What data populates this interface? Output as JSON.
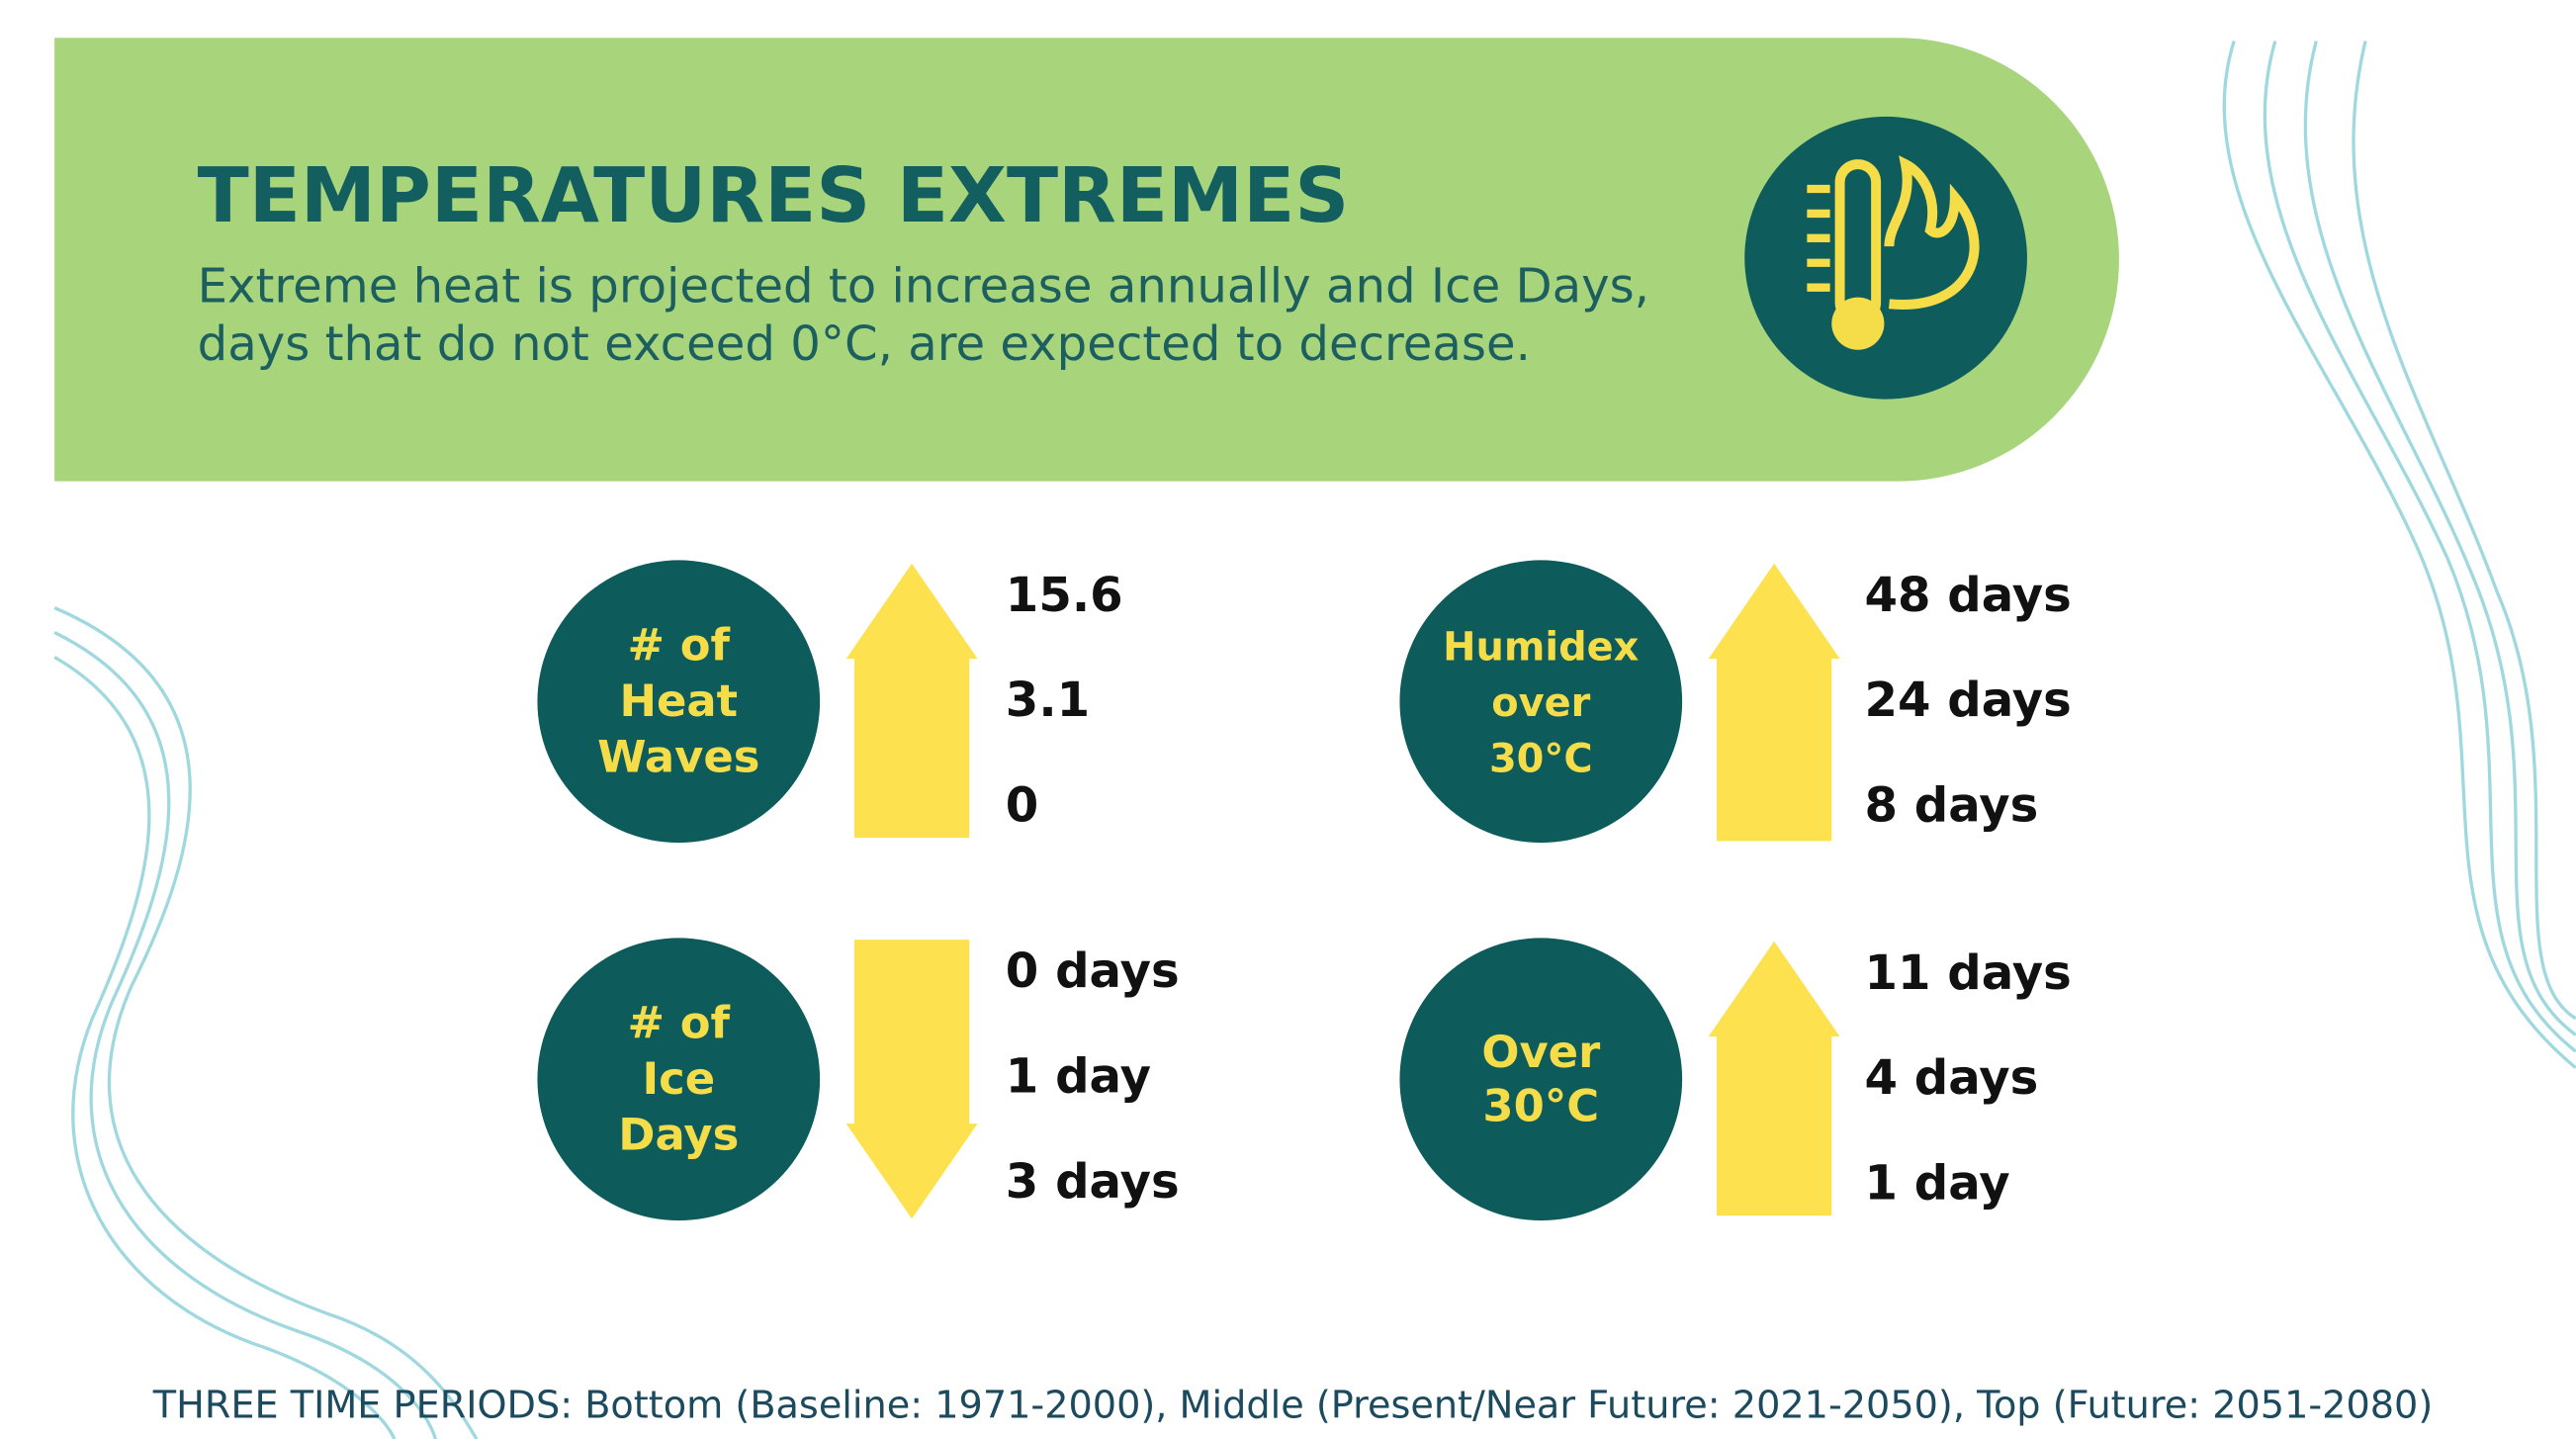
{
  "header": {
    "title": "TEMPERATURES EXTREMES",
    "subtitle": [
      "Extreme heat is projected to increase annually and Ice Days,",
      "days that do not exceed 0°C, are expected to decrease."
    ]
  },
  "panels": [
    {
      "label": [
        "# of",
        "Heat",
        "Waves"
      ],
      "values": [
        "15.6",
        "3.1",
        "0"
      ]
    },
    {
      "label": [
        "Humidex",
        "over",
        "30°C"
      ],
      "values": [
        "48 days",
        "24 days",
        "8 days"
      ]
    },
    {
      "label": [
        "# of",
        "Ice",
        "Days"
      ],
      "values": [
        "0 days",
        "1 day",
        "3 days"
      ]
    },
    {
      "label": [
        "Over",
        "30°C"
      ],
      "values": [
        "11 days",
        "4 days",
        "1 day"
      ]
    }
  ],
  "footer": "THREE TIME PERIODS: Bottom (Baseline: 1971-2000), Middle (Present/Near Future: 2021-2050), Top (Future: 2051-2080)"
}
